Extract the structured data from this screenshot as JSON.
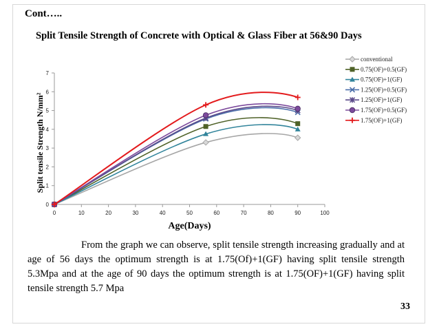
{
  "slide": {
    "heading": "Cont…..",
    "paragraph": "From the graph  we can observe, split tensile strength increasing gradually and at age of 56 days the optimum strength is at 1.75(Of)+1(GF) having split tensile strength 5.3Mpa and at the age of 90 days the optimum strength is at 1.75(OF)+1(GF) having split tensile strength 5.7 Mpa",
    "page_number": "33"
  },
  "chart_data": {
    "type": "line",
    "title": "Split Tensile Strength of Concrete with Optical & Glass Fiber at 56&90 Days",
    "xlabel": "Age(Days)",
    "ylabel": "Split tensile  Strength N/mm²",
    "xlim": [
      0,
      100
    ],
    "ylim": [
      0,
      7
    ],
    "xticks": [
      0,
      10,
      20,
      30,
      40,
      50,
      60,
      70,
      80,
      90,
      100
    ],
    "yticks": [
      0,
      1,
      2,
      3,
      4,
      5,
      6,
      7
    ],
    "x": [
      0,
      56,
      90
    ],
    "grid": false,
    "smooth": true,
    "legend_position": "right",
    "series": [
      {
        "name": "conventional",
        "values": [
          0,
          3.3,
          3.55
        ],
        "color": "#a6a6a6",
        "marker": "diamond"
      },
      {
        "name": "0.75(OF)+0.5(GF)",
        "values": [
          0,
          4.15,
          4.3
        ],
        "color": "#4f6228",
        "marker": "square"
      },
      {
        "name": "0.75(OF)+1(GF)",
        "values": [
          0,
          3.75,
          4.0
        ],
        "color": "#31849b",
        "marker": "triangle"
      },
      {
        "name": "1.25(OF)+0.5(GF)",
        "values": [
          0,
          4.55,
          4.9
        ],
        "color": "#4a6ea9",
        "marker": "x"
      },
      {
        "name": "1.25(OF)+1(GF)",
        "values": [
          0,
          4.6,
          5.0
        ],
        "color": "#5b4a8a",
        "marker": "star"
      },
      {
        "name": "1.75(OF)+0.5(GF)",
        "values": [
          0,
          4.75,
          5.1
        ],
        "color": "#7c4a9c",
        "marker": "circle"
      },
      {
        "name": "1.75(OF)+1(GF)",
        "values": [
          0,
          5.3,
          5.7
        ],
        "color": "#e31a1c",
        "marker": "plus"
      }
    ]
  }
}
